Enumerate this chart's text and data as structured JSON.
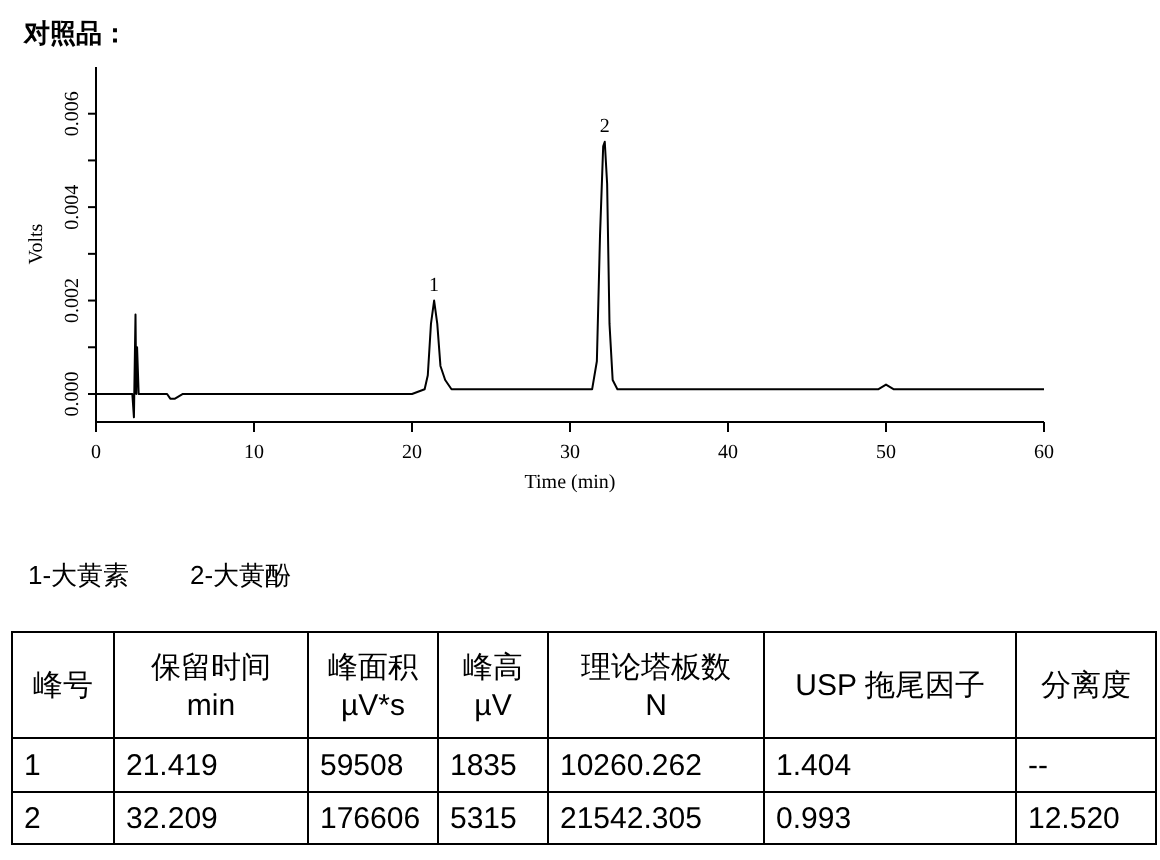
{
  "chart_data": {
    "type": "line",
    "title": "对照品：",
    "xlabel": "Time (min)",
    "ylabel": "Volts",
    "x": [
      0,
      1,
      2,
      2.3,
      2.4,
      2.5,
      2.55,
      2.6,
      2.7,
      3.5,
      4.5,
      4.7,
      5.0,
      5.5,
      10,
      15,
      20,
      20.8,
      21.0,
      21.2,
      21.4,
      21.6,
      21.8,
      22.1,
      22.5,
      23,
      30,
      31.4,
      31.7,
      31.9,
      32.1,
      32.2,
      32.35,
      32.5,
      32.7,
      33,
      35,
      40,
      45,
      49.5,
      50,
      50.5,
      55,
      56,
      60
    ],
    "series": [
      {
        "color": "#000000",
        "values": [
          0,
          0,
          0,
          0,
          -0.0005,
          0.0017,
          0,
          0.001,
          0,
          0,
          0,
          -0.0001,
          -0.0001,
          0,
          0,
          0,
          0,
          0.0001,
          0.0004,
          0.0015,
          0.002,
          0.0015,
          0.0006,
          0.0003,
          0.0001,
          0.0001,
          0.0001,
          0.0001,
          0.0007,
          0.0034,
          0.0053,
          0.0054,
          0.0045,
          0.0015,
          0.0003,
          0.0001,
          0.0001,
          0.0001,
          0.0001,
          0.0001,
          0.0002,
          0.0001,
          0.0001,
          0.0001,
          0.0001
        ]
      }
    ],
    "xlim": [
      0,
      60
    ],
    "xticks": [
      0,
      10,
      20,
      30,
      40,
      50,
      60
    ],
    "ylim": [
      -0.0006,
      0.007
    ],
    "yticks": [
      {
        "value": 0,
        "label": "0.000"
      },
      {
        "value": 0.001,
        "label": null
      },
      {
        "value": 0.002,
        "label": "0.002"
      },
      {
        "value": 0.003,
        "label": null
      },
      {
        "value": 0.004,
        "label": "0.004"
      },
      {
        "value": 0.005,
        "label": null
      },
      {
        "value": 0.006,
        "label": "0.006"
      }
    ],
    "grid": false,
    "marker": "none",
    "line_style": "solid",
    "annotations": [
      {
        "text": "1",
        "x": 21.4,
        "y": 0.002
      },
      {
        "text": "2",
        "x": 32.2,
        "y": 0.0054
      },
      "1-大黄素",
      "2-大黄酚",
      "峰号",
      "保留时间\nmin",
      "峰面积\nµV*s",
      "峰高\nµV",
      "理论塔板数\nN",
      "USP 拖尾因子",
      "分离度",
      "1",
      "21.419",
      "59508",
      "1835",
      "10260.262",
      "1.404",
      "--",
      "2",
      "32.209",
      "176606",
      "5315",
      "21542.305",
      "0.993",
      "12.520"
    ]
  }
}
